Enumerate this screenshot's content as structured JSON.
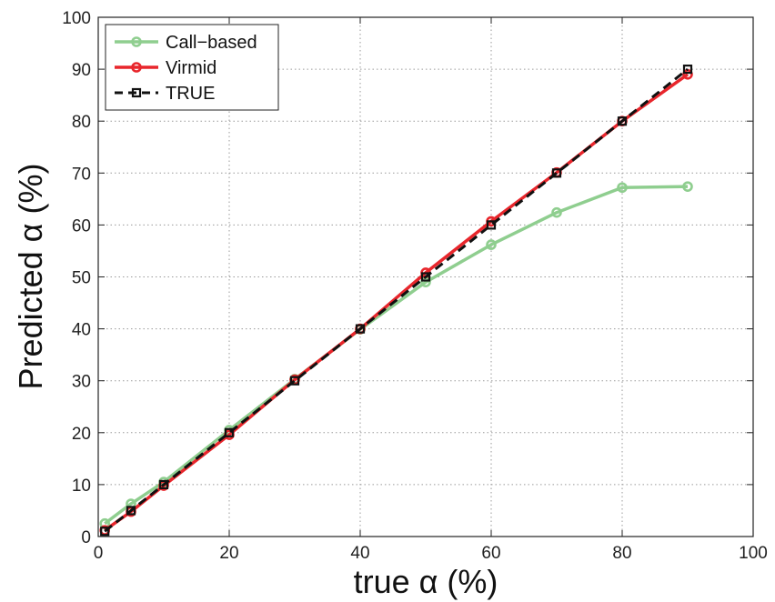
{
  "chart_data": {
    "type": "line",
    "xlabel": "true α (%)",
    "ylabel": "Predicted α (%)",
    "xlim": [
      0,
      100
    ],
    "ylim": [
      0,
      100
    ],
    "xticks": [
      0,
      20,
      40,
      60,
      80,
      100
    ],
    "yticks": [
      0,
      10,
      20,
      30,
      40,
      50,
      60,
      70,
      80,
      90,
      100
    ],
    "grid": true,
    "legend_position": "top-left",
    "series": [
      {
        "name": "Call−based",
        "color": "#8fce8f",
        "marker": "circle",
        "line_style": "solid",
        "x": [
          1,
          5,
          10,
          20,
          30,
          40,
          50,
          60,
          70,
          80,
          90
        ],
        "y": [
          2.5,
          6.3,
          10.5,
          20.5,
          30.3,
          39.9,
          49.0,
          56.2,
          62.4,
          67.2,
          67.4
        ]
      },
      {
        "name": "Virmid",
        "color": "#e8262c",
        "marker": "circle",
        "line_style": "solid",
        "x": [
          1,
          5,
          10,
          20,
          30,
          40,
          50,
          60,
          70,
          80,
          90
        ],
        "y": [
          1.2,
          4.8,
          9.8,
          19.6,
          30.2,
          40.0,
          50.8,
          60.7,
          70.1,
          80.0,
          89.0
        ]
      },
      {
        "name": "TRUE",
        "color": "#111111",
        "marker": "square",
        "line_style": "dashed",
        "x": [
          1,
          5,
          10,
          20,
          30,
          40,
          50,
          60,
          70,
          80,
          90
        ],
        "y": [
          1,
          5,
          10,
          20,
          30,
          40,
          50,
          60,
          70,
          80,
          90
        ]
      }
    ]
  }
}
